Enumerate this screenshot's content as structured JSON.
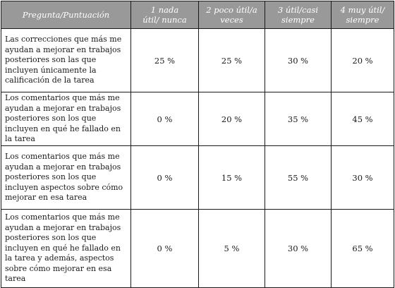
{
  "table": {
    "headers": [
      "Pregunta/Puntuación",
      "1 nada útil/ nunca",
      "2 poco útil/a veces",
      "3 útil/casi siempre",
      "4 muy útil/ siempre"
    ],
    "rows": [
      {
        "question": "Las correcciones que más me ayudan a mejorar en trabajos posteriores son las que incluyen únicamente la calificación de la tarea",
        "values": [
          "25 %",
          "25 %",
          "30 %",
          "20 %"
        ]
      },
      {
        "question": "Los comentarios que más me ayudan a mejorar en trabajos posteriores son los que incluyen en qué he fallado en la tarea",
        "values": [
          "0 %",
          "20 %",
          "35 %",
          "45 %"
        ]
      },
      {
        "question": "Los comentarios que más me ayudan a mejorar en trabajos posteriores son los que incluyen aspectos sobre cómo mejorar en esa tarea",
        "values": [
          "0 %",
          "15 %",
          "55 %",
          "30 %"
        ]
      },
      {
        "question": "Los comentarios que más me ayudan a mejorar en trabajos posteriores son los que incluyen en qué he fallado en la tarea y además, aspectos sobre cómo mejorar en esa tarea",
        "values": [
          "0 %",
          "5 %",
          "30 %",
          "65 %"
        ]
      }
    ]
  },
  "colors": {
    "header_background": "#999999",
    "header_text": "#ffffff",
    "border": "#1a1a1a",
    "body_text": "#1a1a1a"
  }
}
